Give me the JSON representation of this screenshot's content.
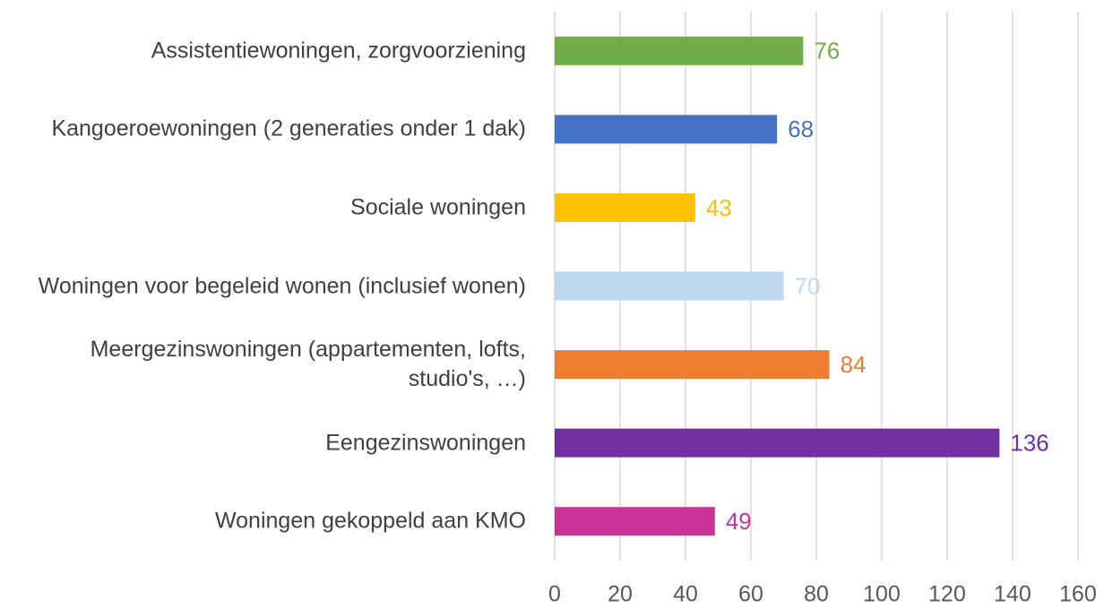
{
  "chart_data": {
    "type": "bar",
    "orientation": "horizontal",
    "categories": [
      "Assistentiewoningen, zorgvoorziening",
      "Kangoeroewoningen (2 generaties onder 1 dak)",
      "Sociale woningen",
      "Woningen voor begeleid wonen (inclusief wonen)",
      "Meergezinswoningen (appartementen, lofts, studio's, …)",
      "Eengezinswoningen",
      "Woningen gekoppeld aan KMO"
    ],
    "values": [
      76,
      68,
      43,
      70,
      84,
      136,
      49
    ],
    "colors": [
      "#70ad47",
      "#4472c4",
      "#ffc000",
      "#bdd7ee",
      "#ed7d31",
      "#7030a0",
      "#cc3399"
    ],
    "xlim": [
      0,
      160
    ],
    "xticks": [
      0,
      20,
      40,
      60,
      80,
      100,
      120,
      140,
      160
    ],
    "grid": true
  }
}
